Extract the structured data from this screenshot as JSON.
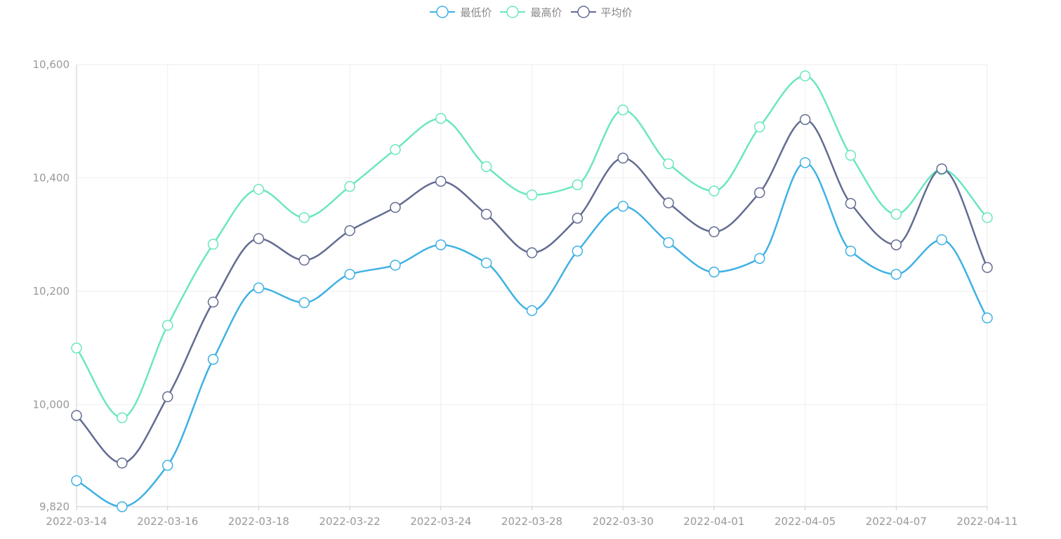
{
  "chart_data": {
    "type": "line",
    "title": "",
    "xlabel": "",
    "ylabel": "",
    "smooth": true,
    "grid": true,
    "legend_position": "top-center",
    "x": [
      "2022-03-14",
      "2022-03-15",
      "2022-03-16",
      "2022-03-17",
      "2022-03-18",
      "2022-03-21",
      "2022-03-22",
      "2022-03-23",
      "2022-03-24",
      "2022-03-25",
      "2022-03-28",
      "2022-03-29",
      "2022-03-30",
      "2022-03-31",
      "2022-04-01",
      "2022-04-04",
      "2022-04-05",
      "2022-04-06",
      "2022-04-07",
      "2022-04-08",
      "2022-04-11"
    ],
    "x_tick_labels": [
      "2022-03-14",
      "2022-03-16",
      "2022-03-18",
      "2022-03-22",
      "2022-03-24",
      "2022-03-28",
      "2022-03-30",
      "2022-04-01",
      "2022-04-05",
      "2022-04-07",
      "2022-04-11"
    ],
    "ylim": [
      9820,
      10600
    ],
    "y_ticks": [
      10000,
      10200,
      10400,
      10600
    ],
    "y_tick_labels": [
      "10,000",
      "10,200",
      "10,400",
      "10,600"
    ],
    "y_min_label": "9,820",
    "series": [
      {
        "name": "最低价",
        "color": "#3fb1e3",
        "values": [
          9866,
          9820,
          9893,
          10080,
          10206,
          10180,
          10230,
          10246,
          10282,
          10250,
          10166,
          10271,
          10350,
          10286,
          10234,
          10258,
          10427,
          10271,
          10230,
          10291,
          10153
        ]
      },
      {
        "name": "最高价",
        "color": "#6be6c1",
        "values": [
          10100,
          9977,
          10140,
          10283,
          10380,
          10330,
          10385,
          10450,
          10505,
          10420,
          10370,
          10388,
          10520,
          10425,
          10377,
          10490,
          10580,
          10440,
          10336,
          10415,
          10330
        ]
      },
      {
        "name": "平均价",
        "color": "#626c91",
        "values": [
          9981,
          9897,
          10014,
          10181,
          10293,
          10255,
          10307,
          10348,
          10394,
          10336,
          10268,
          10329,
          10435,
          10356,
          10305,
          10374,
          10503,
          10355,
          10282,
          10416,
          10242
        ]
      }
    ]
  },
  "legend": {
    "items": [
      "最低价",
      "最高价",
      "平均价"
    ]
  }
}
